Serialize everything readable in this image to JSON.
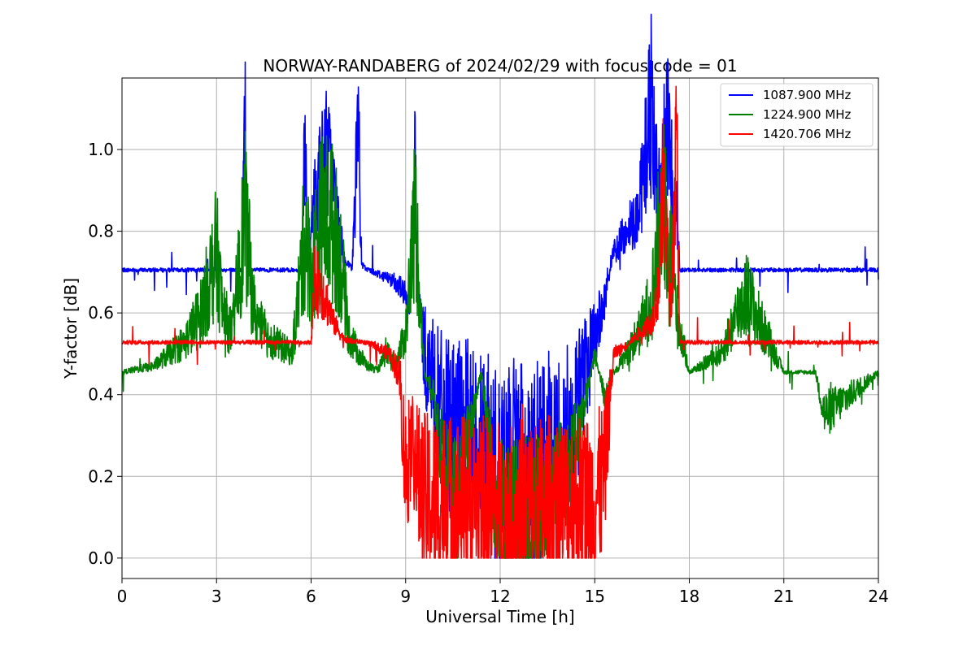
{
  "chart_data": {
    "type": "line",
    "title": "NORWAY-RANDABERG of 2024/02/29 with focus code = 01",
    "xlabel": "Universal Time [h]",
    "ylabel": "Y-factor [dB]",
    "xlim": [
      0,
      24
    ],
    "ylim": [
      -0.05,
      1.175
    ],
    "xticks": [
      0,
      3,
      6,
      9,
      12,
      15,
      18,
      21,
      24
    ],
    "yticks": [
      0.0,
      0.2,
      0.4,
      0.6,
      0.8,
      1.0
    ],
    "ytick_labels": [
      "0.0",
      "0.2",
      "0.4",
      "0.6",
      "0.8",
      "1.0"
    ],
    "grid": true,
    "legend_position": "top-right",
    "series": [
      {
        "name": "1087.900 MHz",
        "color": "#0000ff",
        "baseline": 0.705,
        "x": [
          0,
          3.8,
          3.9,
          4.0,
          5.7,
          5.8,
          5.9,
          6.1,
          6.3,
          6.5,
          6.7,
          6.9,
          7.1,
          7.3,
          7.5,
          7.6,
          7.7,
          8.0,
          8.3,
          8.6,
          8.9,
          9.1,
          9.3,
          9.4,
          9.6,
          9.8,
          10.0,
          10.3,
          10.6,
          11.0,
          11.4,
          11.6,
          12.0,
          12.4,
          12.8,
          13.2,
          13.6,
          14.0,
          14.4,
          14.8,
          15.0,
          15.3,
          15.6,
          16.0,
          16.4,
          16.8,
          17.0,
          17.3,
          17.6,
          17.7,
          18.0,
          21.0,
          24.0
        ],
        "y": [
          0.705,
          0.705,
          1.09,
          0.705,
          0.705,
          1.04,
          0.7,
          0.88,
          0.95,
          1.0,
          0.92,
          0.8,
          0.72,
          0.71,
          1.06,
          0.72,
          0.71,
          0.7,
          0.69,
          0.68,
          0.66,
          0.6,
          0.99,
          0.62,
          0.5,
          0.45,
          0.4,
          0.32,
          0.32,
          0.32,
          0.28,
          0.25,
          0.18,
          0.22,
          0.2,
          0.22,
          0.26,
          0.3,
          0.36,
          0.48,
          0.55,
          0.62,
          0.75,
          0.8,
          0.85,
          1.12,
          0.9,
          1.05,
          0.85,
          0.705,
          0.705,
          0.705,
          0.705
        ]
      },
      {
        "name": "1224.900 MHz",
        "color": "#008000",
        "baseline": 0.455,
        "x": [
          0,
          1.0,
          1.5,
          2.0,
          2.5,
          3.0,
          3.2,
          3.5,
          3.9,
          4.2,
          4.5,
          5.0,
          5.4,
          5.8,
          6.0,
          6.3,
          6.6,
          6.9,
          7.2,
          7.5,
          7.8,
          8.1,
          8.4,
          8.7,
          9.0,
          9.3,
          9.6,
          9.9,
          10.2,
          10.6,
          11.0,
          11.4,
          11.8,
          12.2,
          12.6,
          13.0,
          13.4,
          13.8,
          14.2,
          14.6,
          15.0,
          15.3,
          15.6,
          16.0,
          16.4,
          16.8,
          17.2,
          17.6,
          18.0,
          19.0,
          19.8,
          20.4,
          21.0,
          22.0,
          22.3,
          24.0
        ],
        "y": [
          0.455,
          0.47,
          0.5,
          0.53,
          0.6,
          0.75,
          0.6,
          0.55,
          0.84,
          0.6,
          0.55,
          0.52,
          0.5,
          0.79,
          0.7,
          0.83,
          0.84,
          0.75,
          0.55,
          0.5,
          0.47,
          0.46,
          0.5,
          0.48,
          0.55,
          0.85,
          0.45,
          0.4,
          0.2,
          0.1,
          0.3,
          0.46,
          0.18,
          0.08,
          0.12,
          0.09,
          0.12,
          0.18,
          0.22,
          0.35,
          0.5,
          0.4,
          0.45,
          0.5,
          0.55,
          0.63,
          0.9,
          0.6,
          0.455,
          0.5,
          0.65,
          0.55,
          0.455,
          0.455,
          0.35,
          0.455
        ]
      },
      {
        "name": "1420.706 MHz",
        "color": "#ff0000",
        "baseline": 0.528,
        "x": [
          0,
          6.0,
          6.1,
          6.4,
          6.7,
          7.0,
          7.3,
          7.6,
          8.0,
          8.5,
          8.8,
          9.0,
          9.2,
          9.5,
          9.8,
          10.2,
          10.6,
          11.0,
          11.4,
          11.8,
          12.2,
          12.6,
          13.0,
          13.4,
          13.8,
          14.2,
          14.6,
          15.0,
          15.3,
          15.6,
          16.0,
          16.4,
          16.8,
          17.0,
          17.2,
          17.4,
          17.6,
          17.7,
          18.0,
          21.0,
          24.0
        ],
        "y": [
          0.528,
          0.528,
          0.68,
          0.65,
          0.58,
          0.54,
          0.53,
          0.53,
          0.52,
          0.5,
          0.45,
          0.2,
          0.3,
          0.14,
          0.14,
          0.14,
          0.14,
          0.14,
          0.13,
          0.12,
          0.1,
          0.11,
          0.12,
          0.13,
          0.14,
          0.14,
          0.14,
          0.14,
          0.2,
          0.5,
          0.52,
          0.55,
          0.58,
          0.65,
          0.92,
          0.6,
          1.0,
          0.528,
          0.528,
          0.528,
          0.528
        ]
      }
    ]
  }
}
